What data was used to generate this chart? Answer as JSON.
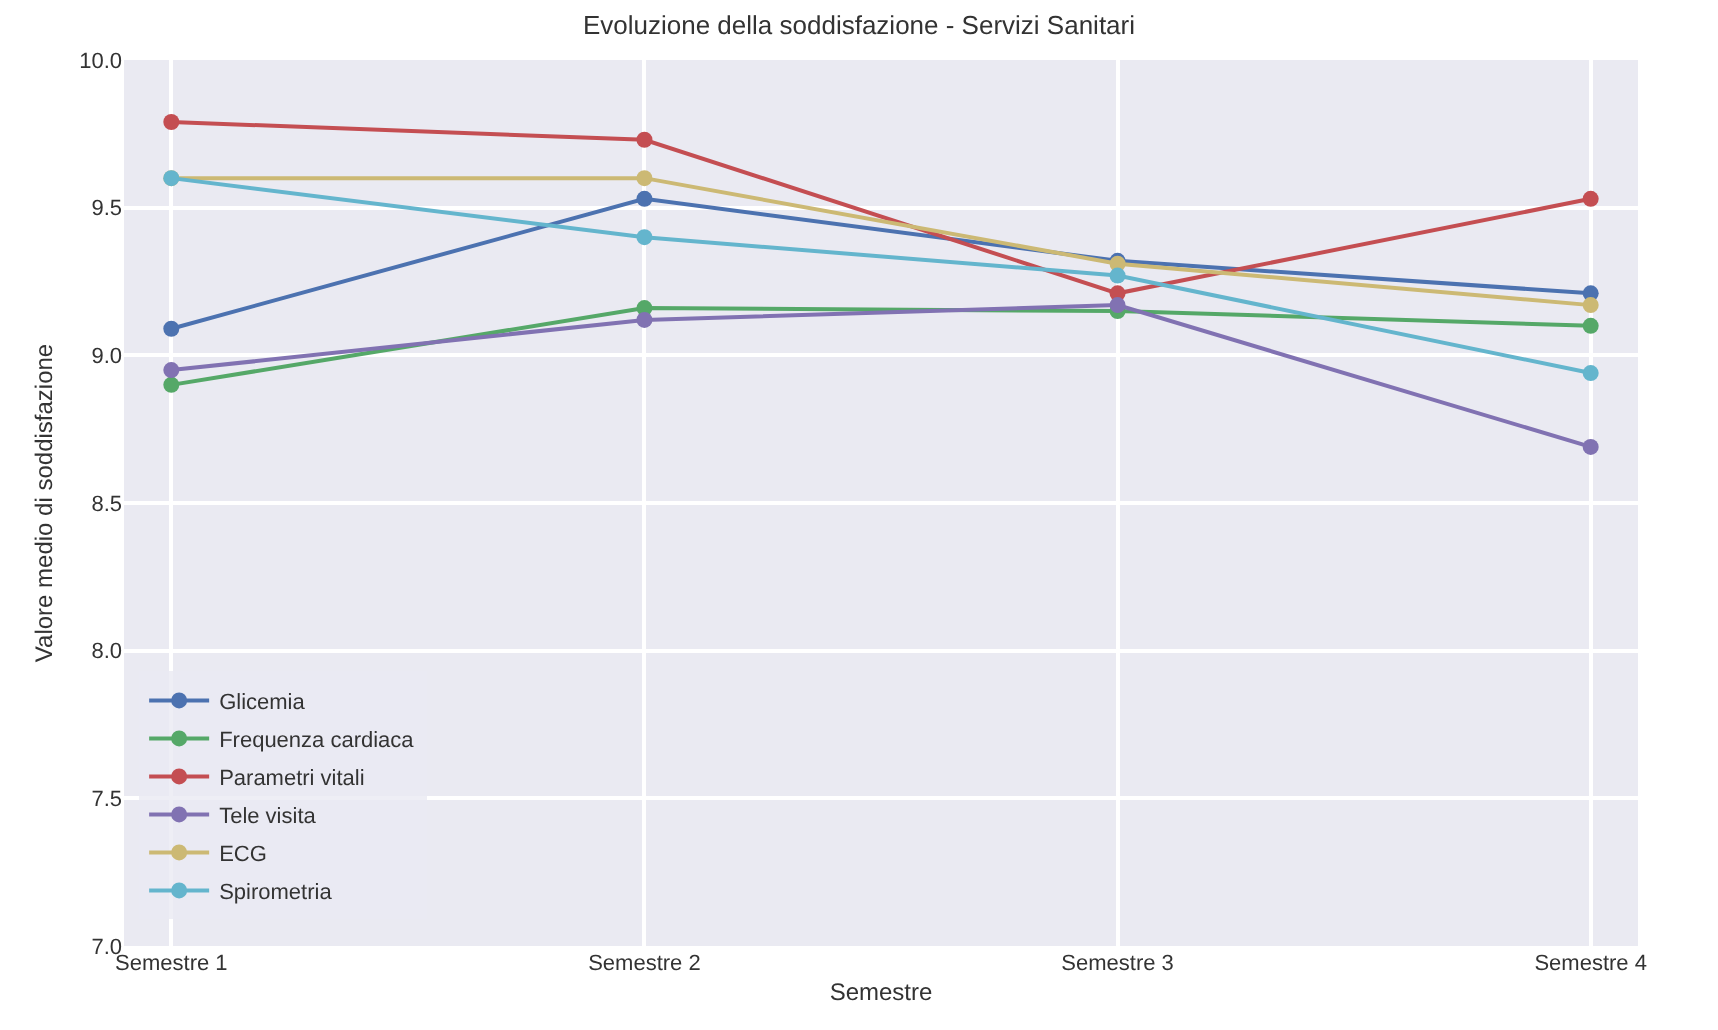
{
  "chart_data": {
    "type": "line",
    "title": "Evoluzione della soddisfazione - Servizi Sanitari",
    "xlabel": "Semestre",
    "ylabel": "Valore medio di soddisfazione",
    "categories": [
      "Semestre 1",
      "Semestre 2",
      "Semestre 3",
      "Semestre 4"
    ],
    "series": [
      {
        "name": "Glicemia",
        "color": "#4c72b0",
        "values": [
          9.09,
          9.53,
          9.32,
          9.21
        ]
      },
      {
        "name": "Frequenza cardiaca",
        "color": "#55a868",
        "values": [
          8.9,
          9.16,
          9.15,
          9.1
        ]
      },
      {
        "name": "Parametri vitali",
        "color": "#c44e52",
        "values": [
          9.79,
          9.73,
          9.21,
          9.53
        ]
      },
      {
        "name": "Tele visita",
        "color": "#8172b2",
        "values": [
          8.95,
          9.12,
          9.17,
          8.69
        ]
      },
      {
        "name": "ECG",
        "color": "#ccb974",
        "values": [
          9.6,
          9.6,
          9.31,
          9.17
        ]
      },
      {
        "name": "Spirometria",
        "color": "#64b5cd",
        "values": [
          9.6,
          9.4,
          9.27,
          8.94
        ]
      }
    ],
    "ylim": [
      7.0,
      10.0
    ],
    "yticks": [
      {
        "value": 7,
        "label": "7.0"
      },
      {
        "value": 7.5,
        "label": "7.5"
      },
      {
        "value": 8,
        "label": "8.0"
      },
      {
        "value": 8.5,
        "label": "8.5"
      },
      {
        "value": 9,
        "label": "9.0"
      },
      {
        "value": 9.5,
        "label": "9.5"
      },
      {
        "value": 10,
        "label": "10.0"
      }
    ],
    "grid": true,
    "legend": "bottom left",
    "marker": "circle",
    "line_style": "solid"
  }
}
